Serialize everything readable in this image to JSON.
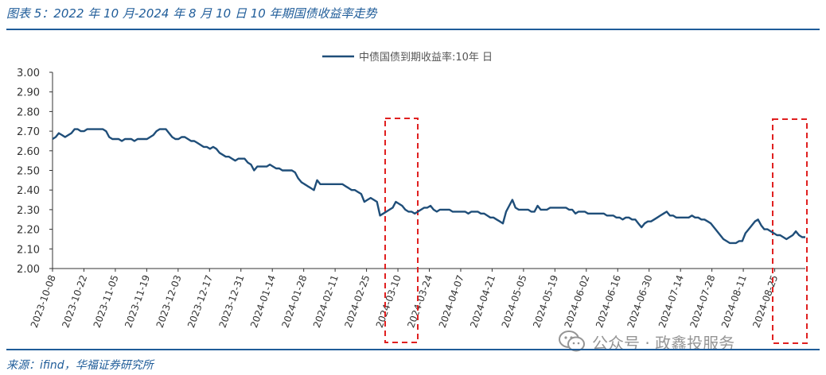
{
  "figure": {
    "title": "图表 5：2022 年 10 月-2024 年 8 月 10 日 10 年期国债收益率走势",
    "source": "来源：ifind，华福证券研究所",
    "watermark": "公众号 · 政鑫投服务"
  },
  "chart_data": {
    "type": "line",
    "series": [
      {
        "name": "中债国债到期收益率:10年 日",
        "color": "#1f4e79",
        "values": [
          2.66,
          2.67,
          2.69,
          2.68,
          2.67,
          2.68,
          2.69,
          2.71,
          2.71,
          2.7,
          2.7,
          2.71,
          2.71,
          2.71,
          2.71,
          2.71,
          2.71,
          2.7,
          2.67,
          2.66,
          2.66,
          2.66,
          2.65,
          2.66,
          2.66,
          2.66,
          2.65,
          2.66,
          2.66,
          2.66,
          2.66,
          2.67,
          2.68,
          2.7,
          2.71,
          2.71,
          2.71,
          2.69,
          2.67,
          2.66,
          2.66,
          2.67,
          2.67,
          2.66,
          2.65,
          2.65,
          2.64,
          2.63,
          2.62,
          2.62,
          2.61,
          2.62,
          2.61,
          2.59,
          2.58,
          2.57,
          2.57,
          2.56,
          2.55,
          2.56,
          2.56,
          2.56,
          2.54,
          2.53,
          2.5,
          2.52,
          2.52,
          2.52,
          2.52,
          2.53,
          2.52,
          2.51,
          2.51,
          2.5,
          2.5,
          2.5,
          2.5,
          2.49,
          2.46,
          2.44,
          2.43,
          2.42,
          2.41,
          2.4,
          2.45,
          2.43,
          2.43,
          2.43,
          2.43,
          2.43,
          2.43,
          2.43,
          2.43,
          2.42,
          2.41,
          2.4,
          2.4,
          2.39,
          2.38,
          2.34,
          2.35,
          2.36,
          2.35,
          2.34,
          2.27,
          2.28,
          2.29,
          2.3,
          2.31,
          2.34,
          2.33,
          2.32,
          2.3,
          2.29,
          2.29,
          2.28,
          2.29,
          2.3,
          2.31,
          2.31,
          2.32,
          2.3,
          2.29,
          2.3,
          2.3,
          2.3,
          2.3,
          2.29,
          2.29,
          2.29,
          2.29,
          2.29,
          2.28,
          2.29,
          2.29,
          2.29,
          2.28,
          2.28,
          2.27,
          2.26,
          2.26,
          2.25,
          2.24,
          2.23,
          2.29,
          2.32,
          2.35,
          2.31,
          2.3,
          2.3,
          2.3,
          2.3,
          2.29,
          2.29,
          2.32,
          2.3,
          2.3,
          2.3,
          2.31,
          2.31,
          2.31,
          2.31,
          2.31,
          2.31,
          2.3,
          2.3,
          2.28,
          2.29,
          2.29,
          2.29,
          2.28,
          2.28,
          2.28,
          2.28,
          2.28,
          2.28,
          2.27,
          2.27,
          2.27,
          2.26,
          2.26,
          2.25,
          2.26,
          2.26,
          2.25,
          2.25,
          2.23,
          2.21,
          2.23,
          2.24,
          2.24,
          2.25,
          2.26,
          2.27,
          2.28,
          2.29,
          2.27,
          2.27,
          2.26,
          2.26,
          2.26,
          2.26,
          2.26,
          2.27,
          2.26,
          2.26,
          2.25,
          2.25,
          2.24,
          2.23,
          2.21,
          2.19,
          2.17,
          2.15,
          2.14,
          2.13,
          2.13,
          2.13,
          2.14,
          2.14,
          2.18,
          2.2,
          2.22,
          2.24,
          2.25,
          2.22,
          2.2,
          2.2,
          2.19,
          2.18,
          2.17,
          2.17,
          2.16,
          2.15,
          2.16,
          2.17,
          2.19,
          2.17,
          2.16,
          2.16
        ]
      }
    ],
    "x_tick_labels": [
      "2023-10-08",
      "2023-10-22",
      "2023-11-05",
      "2023-11-19",
      "2023-12-03",
      "2023-12-17",
      "2023-12-31",
      "2024-01-14",
      "2024-01-28",
      "2024-02-11",
      "2024-02-25",
      "2024-03-10",
      "2024-03-24",
      "2024-04-07",
      "2024-04-21",
      "2024-05-05",
      "2024-05-19",
      "2024-06-02",
      "2024-06-16",
      "2024-06-30",
      "2024-07-14",
      "2024-07-28",
      "2024-08-11",
      "2024-08-25"
    ],
    "y_ticks": [
      "3.00",
      "2.90",
      "2.80",
      "2.70",
      "2.60",
      "2.50",
      "2.40",
      "2.30",
      "2.20",
      "2.10",
      "2.00"
    ],
    "ylim": [
      2.0,
      3.0
    ],
    "legend_position": "top-center",
    "grid": false,
    "highlights": [
      {
        "label": "2024-03-10 附近",
        "color": "#e02020"
      },
      {
        "label": "2024-08-25 附近",
        "color": "#e02020"
      }
    ]
  }
}
